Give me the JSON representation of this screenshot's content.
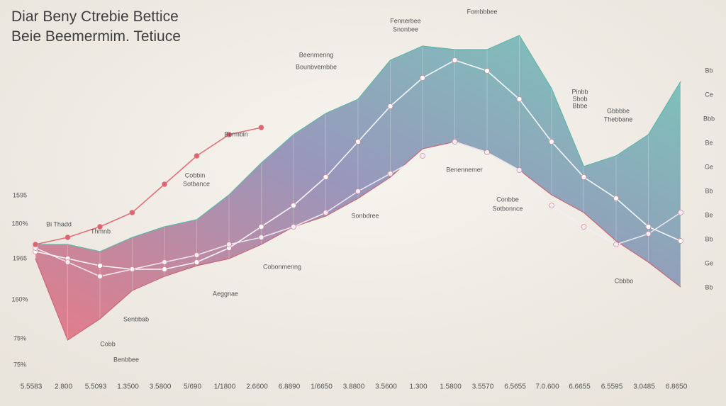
{
  "chart_data": {
    "type": "area",
    "title": "Diar Beny Ctrebie Bettice",
    "subtitle": "Beie Beemermim. Tetiuce",
    "categories": [
      "5.5583",
      "2.800",
      "5.5093",
      "1.3500",
      "3.5800",
      "5/690",
      "1/1800",
      "2.6600",
      "6.8890",
      "1/6650",
      "3.8800",
      "3.5600",
      "1.300",
      "1.5800",
      "3.5570",
      "6.5655",
      "7.0.600",
      "6.6655",
      "6.5595",
      "3.0485",
      "6.8650"
    ],
    "ylim": [
      0,
      100
    ],
    "y_labels": [
      "1595",
      "180%",
      "1965",
      "160%",
      "75%",
      "75%"
    ],
    "side_labels": [
      "Bb",
      "Ce",
      "Bbb",
      "Be",
      "Ge",
      "Bb",
      "Be",
      "Bb",
      "Ge",
      "Bb"
    ],
    "band": {
      "upper": [
        39,
        39,
        37,
        41,
        44,
        46,
        53,
        62,
        70,
        76,
        80,
        91,
        95,
        94,
        94,
        98,
        83,
        61,
        64,
        70,
        85
      ],
      "lower": [
        35,
        12,
        18,
        26,
        30,
        33,
        35,
        39,
        44,
        47,
        52,
        58,
        66,
        68,
        65,
        60,
        53,
        48,
        40,
        34,
        27
      ],
      "colors": [
        "#e4707f",
        "#8e8db6",
        "#6cc5b6"
      ]
    },
    "lines": [
      {
        "color": "#ffffff",
        "values": [
          37,
          35,
          33,
          32,
          32,
          34,
          38,
          44,
          50,
          58,
          68,
          78,
          86,
          91,
          88,
          80,
          68,
          58,
          52,
          44,
          40
        ]
      },
      {
        "color": "#f3eef5",
        "values": [
          38,
          34,
          30,
          32,
          34,
          36,
          39,
          41,
          44,
          48,
          54,
          59,
          64,
          68,
          65,
          60,
          50,
          44,
          39,
          42,
          48
        ]
      },
      {
        "color": "#e0606e",
        "values": [
          39,
          41,
          44,
          48,
          56,
          64,
          70,
          72,
          null,
          null,
          null,
          null,
          null,
          null,
          null,
          null,
          null,
          null,
          null,
          null,
          null
        ]
      }
    ],
    "annotations": [
      "Bi Thadd",
      "Thmnb",
      "Bermbin",
      "Cobbin",
      "Sotbance",
      "Beenmenng",
      "Bounbvembbe",
      "Fennerbee",
      "Snonbee",
      "Fombbbee",
      "Benennemer",
      "Sonbdree",
      "Cobonmenng",
      "Aeggnae",
      "Senbbab",
      "Cobb",
      "Benbbee",
      "Conbbe",
      "Sotbonnce",
      "Pinbb",
      "Sbob",
      "Bbbe",
      "Gbbbbe",
      "Thebbane",
      "Cbbbo"
    ]
  }
}
